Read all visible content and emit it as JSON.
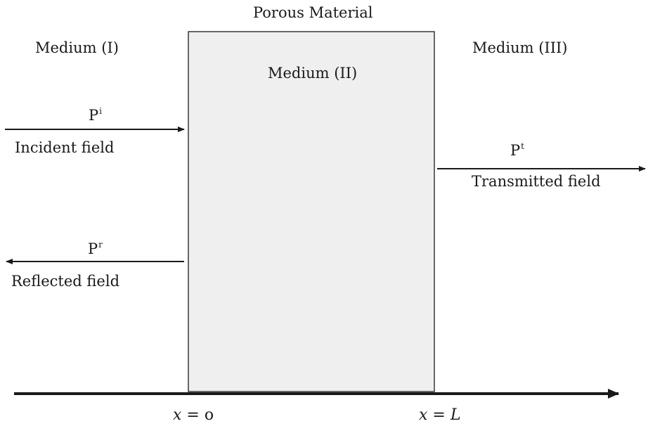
{
  "title": "Porous Material",
  "media": {
    "left": "Medium (I)",
    "center": "Medium (II)",
    "right": "Medium (III)"
  },
  "fields": {
    "incident": {
      "symbol": "P",
      "superscript": "i",
      "label": "Incident field"
    },
    "reflected": {
      "symbol": "P",
      "superscript": "r",
      "label": "Reflected field"
    },
    "transmitted": {
      "symbol": "P",
      "superscript": "t",
      "label": "Transmitted field"
    }
  },
  "axis": {
    "variable": "x",
    "start_value": "o",
    "end_value": "L",
    "equals": "="
  },
  "colors": {
    "slab_fill": "#efefef",
    "stroke": "#1a1a1a"
  }
}
